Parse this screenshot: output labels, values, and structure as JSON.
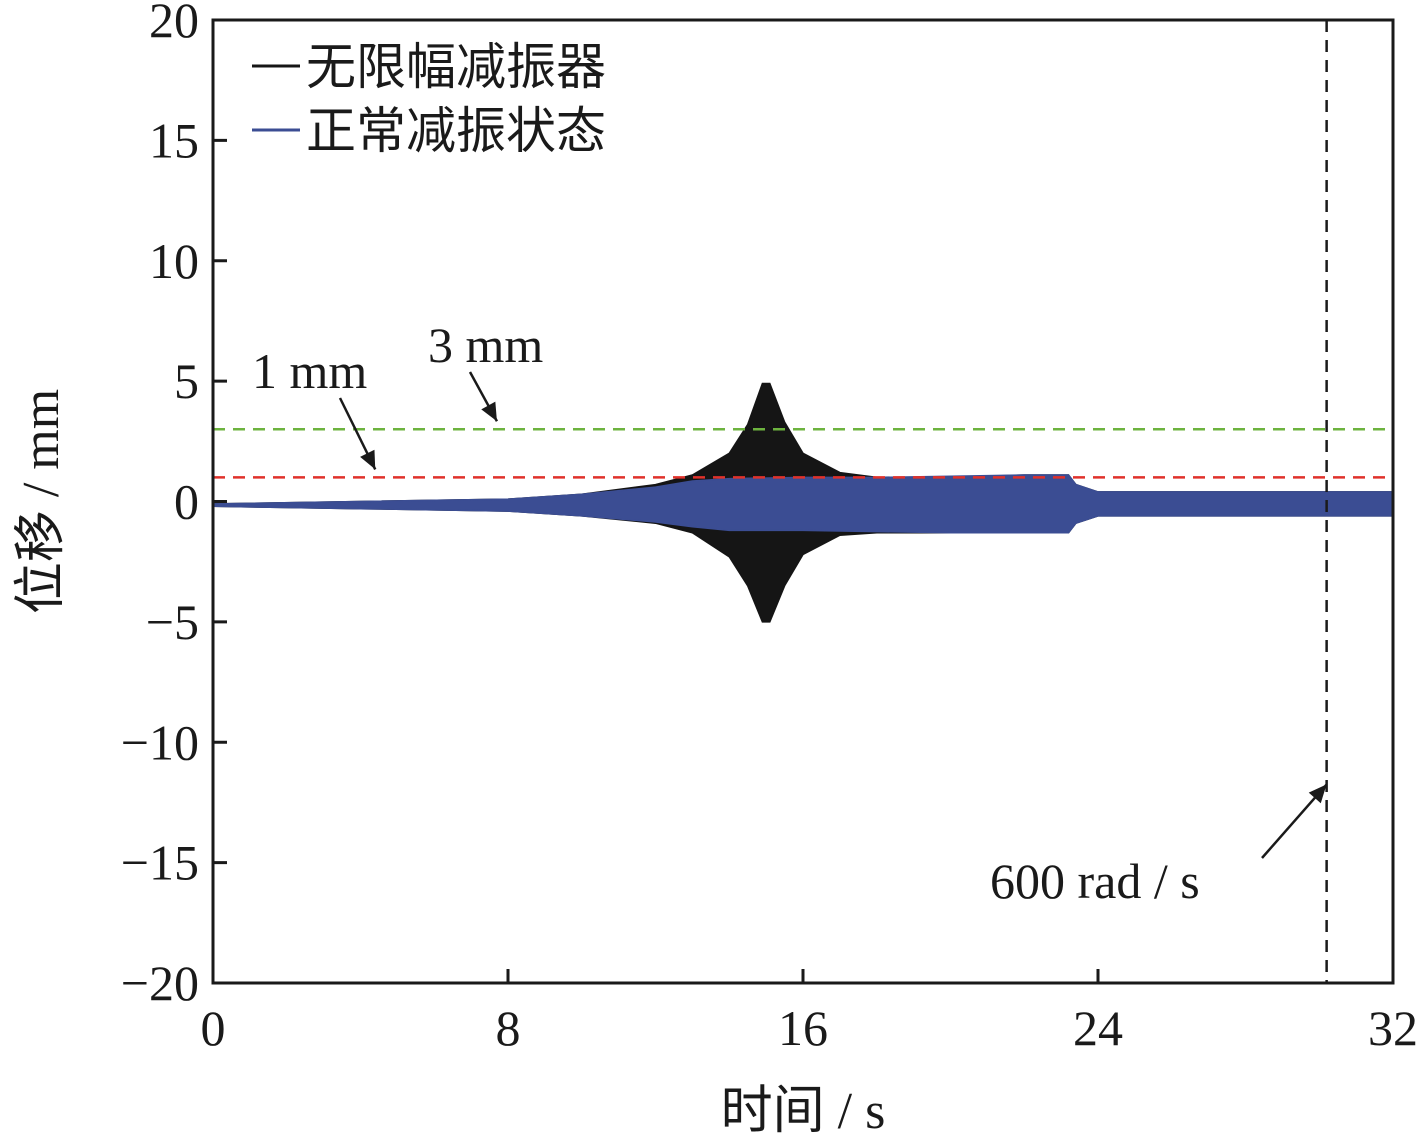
{
  "chart_data": {
    "type": "area",
    "title": "",
    "xlabel": "时间 / s",
    "ylabel": "位移 / mm",
    "xlim": [
      0,
      32
    ],
    "ylim": [
      -20,
      20
    ],
    "x_ticks": [
      0,
      8,
      16,
      24,
      32
    ],
    "y_ticks": [
      -20,
      -15,
      -10,
      -5,
      0,
      5,
      10,
      15,
      20
    ],
    "x_tick_labels": [
      "0",
      "8",
      "16",
      "24",
      "32"
    ],
    "y_tick_labels": [
      "−20",
      "−15",
      "−10",
      "−5",
      "0",
      "5",
      "10",
      "15",
      "20"
    ],
    "grid": false,
    "legend_position": "top-left",
    "series": [
      {
        "name": "无限幅减振器",
        "color": "#151515",
        "x": [
          0,
          4,
          8,
          10,
          12,
          13,
          14,
          14.5,
          14.9,
          15.1,
          15.5,
          16,
          17,
          18,
          20,
          22,
          23.2,
          23.4,
          24,
          28,
          32
        ],
        "upper": [
          -0.1,
          0,
          0.1,
          0.3,
          0.7,
          1.1,
          2.0,
          3.2,
          4.9,
          4.9,
          3.3,
          2.0,
          1.2,
          1.0,
          1.0,
          1.1,
          1.1,
          0.7,
          0.4,
          0.4,
          0.4
        ],
        "lower": [
          -0.2,
          -0.3,
          -0.4,
          -0.6,
          -0.9,
          -1.3,
          -2.3,
          -3.5,
          -5.0,
          -5.0,
          -3.5,
          -2.2,
          -1.4,
          -1.3,
          -1.3,
          -1.3,
          -1.3,
          -0.9,
          -0.6,
          -0.6,
          -0.6
        ]
      },
      {
        "name": "正常减振状态",
        "color": "#3b4d93",
        "x": [
          0,
          4,
          8,
          10,
          12,
          13,
          14,
          16,
          18,
          20,
          22,
          23.2,
          23.4,
          24,
          28,
          32
        ],
        "upper": [
          -0.1,
          0,
          0.1,
          0.3,
          0.6,
          0.85,
          0.95,
          1.0,
          1.0,
          1.05,
          1.1,
          1.1,
          0.7,
          0.4,
          0.4,
          0.4
        ],
        "lower": [
          -0.2,
          -0.3,
          -0.4,
          -0.6,
          -0.85,
          -1.05,
          -1.2,
          -1.2,
          -1.25,
          -1.3,
          -1.3,
          -1.3,
          -0.9,
          -0.6,
          -0.6,
          -0.6
        ]
      }
    ],
    "reference_lines": [
      {
        "orientation": "horizontal",
        "value": 3,
        "color": "#6db33f",
        "style": "dashed"
      },
      {
        "orientation": "horizontal",
        "value": 1,
        "color": "#e0322b",
        "style": "dashed"
      },
      {
        "orientation": "vertical",
        "value": 30.2,
        "color": "#1a1a1a",
        "style": "dashed"
      }
    ],
    "annotations": [
      {
        "text": "1 mm",
        "target": {
          "x": 4.4,
          "y": 1
        }
      },
      {
        "text": "3 mm",
        "target": {
          "x": 7.7,
          "y": 3
        }
      },
      {
        "text": "600 rad / s",
        "target": {
          "x": 30.2,
          "y": -12
        }
      }
    ]
  }
}
